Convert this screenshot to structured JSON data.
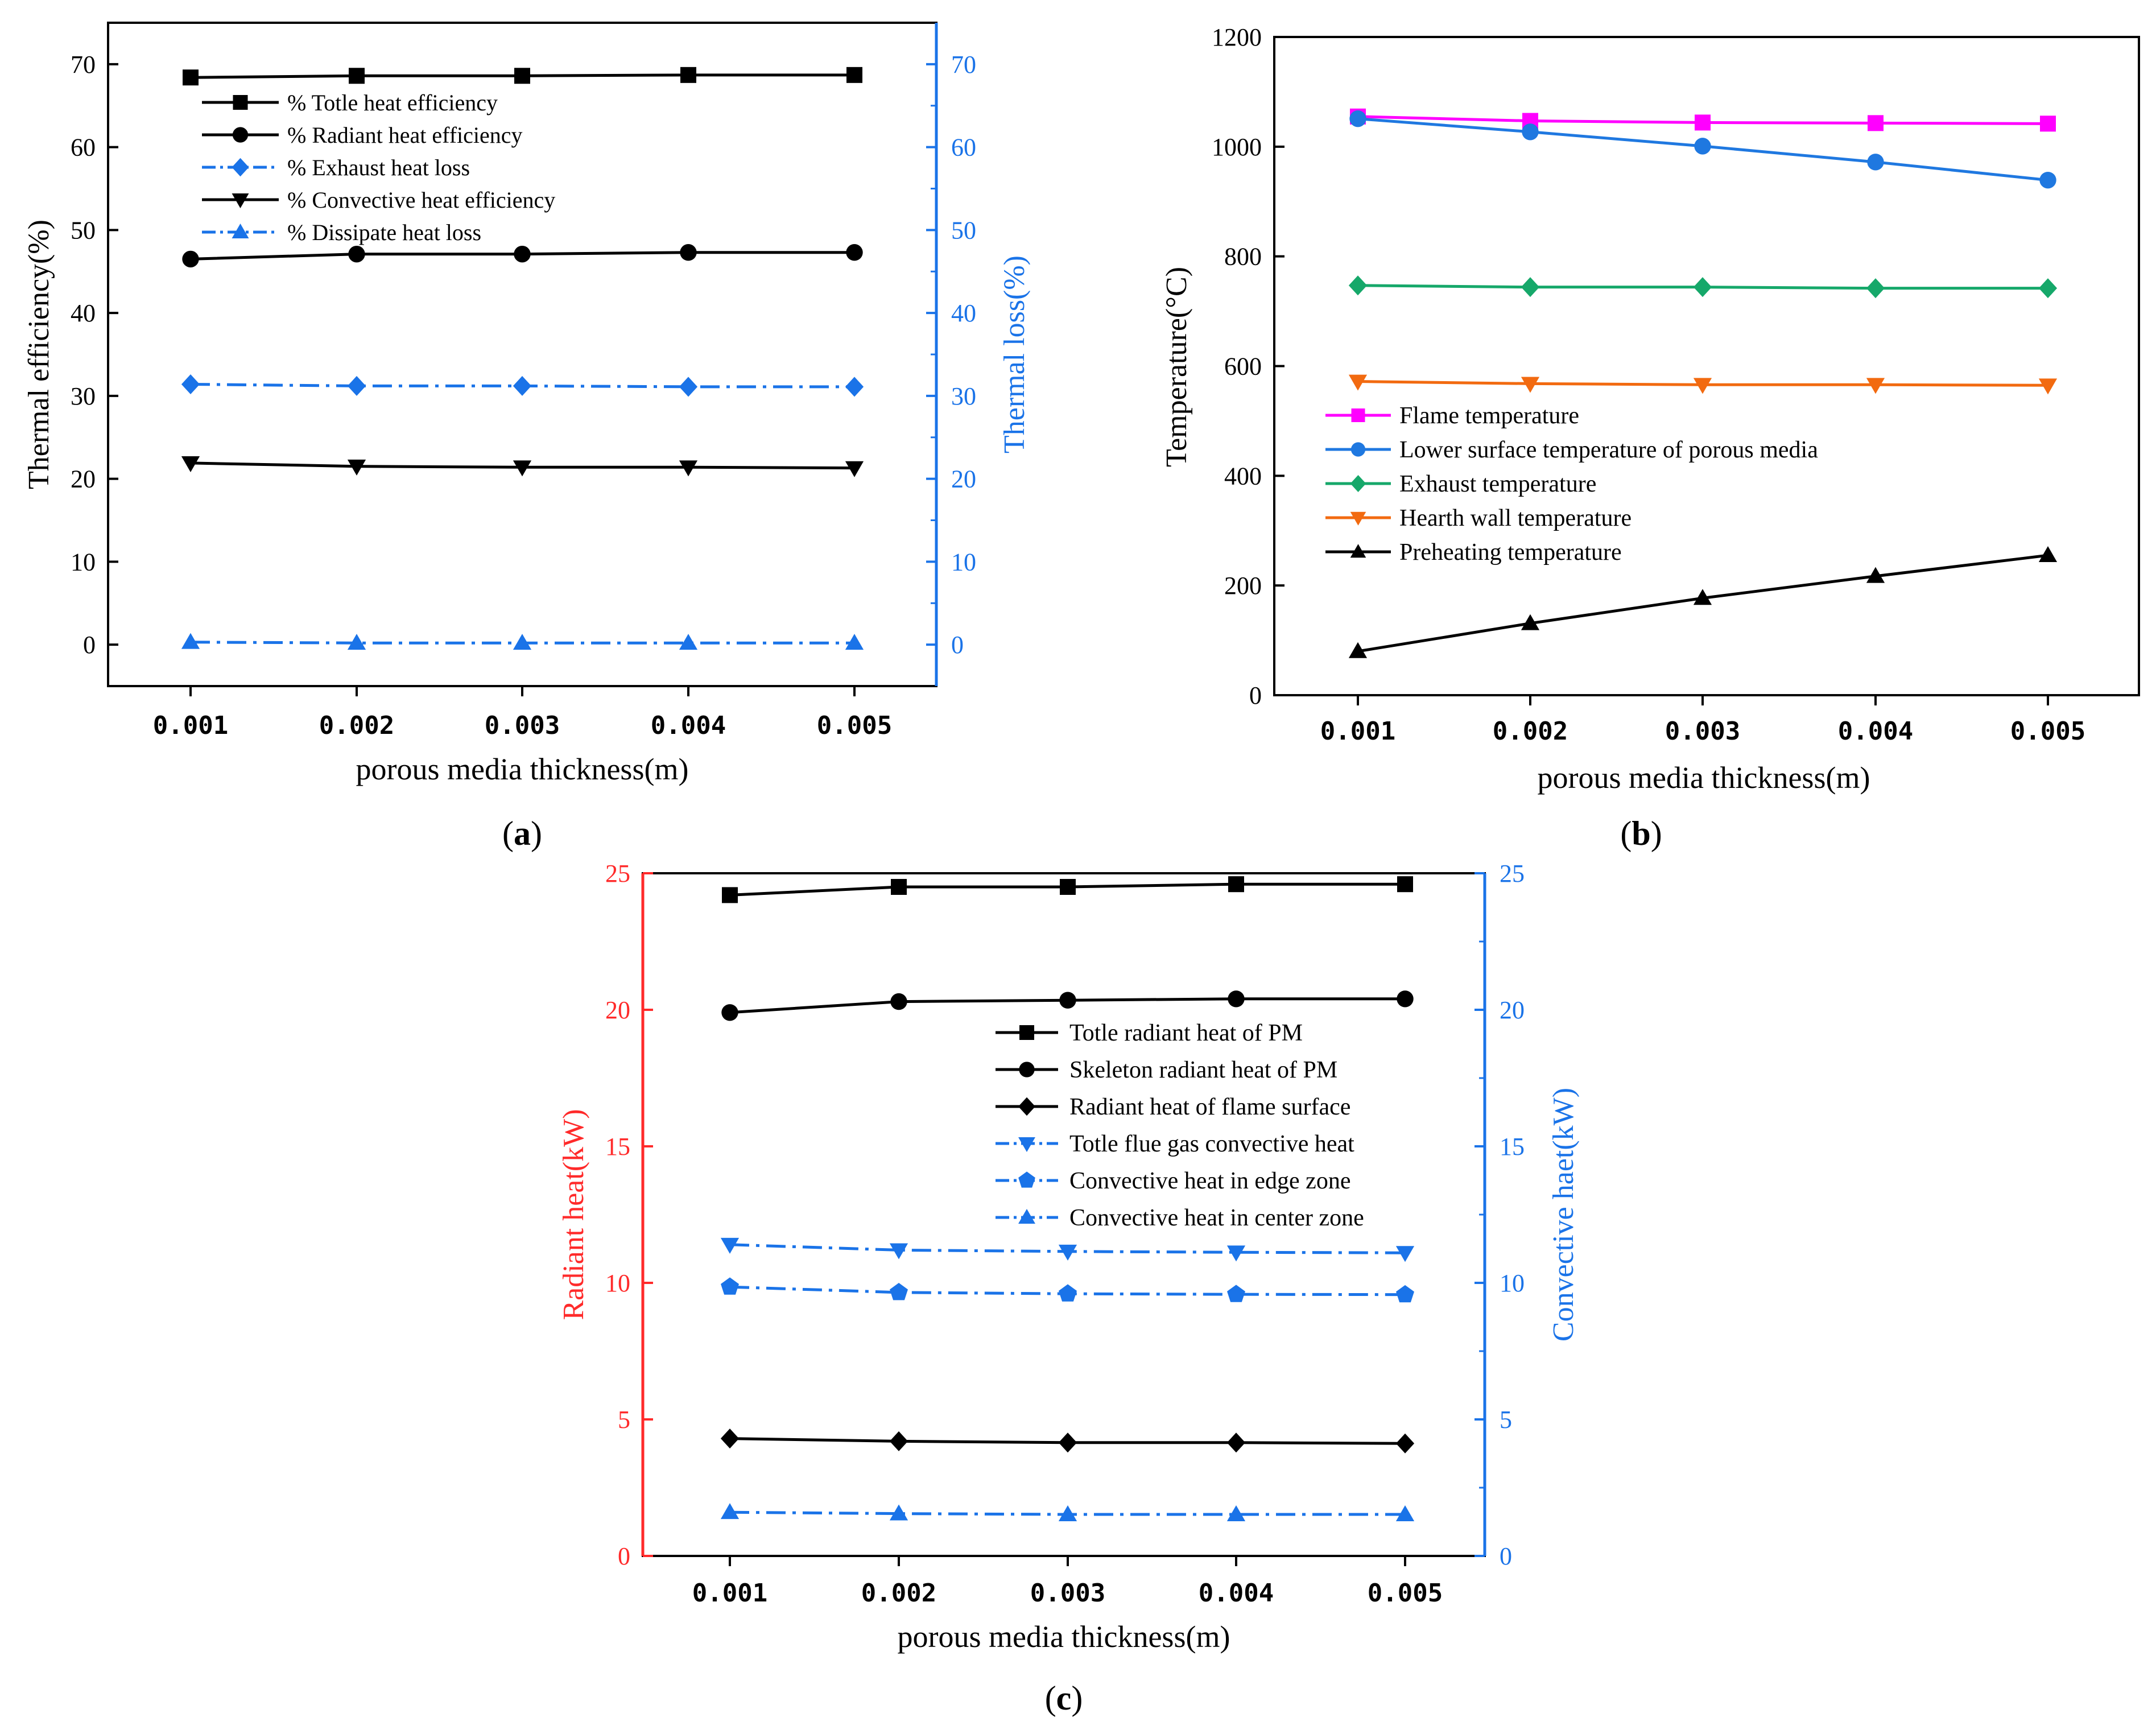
{
  "colors": {
    "black": "#000000",
    "blue": "#1a73e8",
    "magenta": "#ff00ff",
    "lightblue": "#1f78e0",
    "green": "#16a86a",
    "orange": "#f26a10",
    "red": "#ff2a2a"
  },
  "chart_data": [
    {
      "id": "a",
      "type": "line",
      "panel_label": "(a)",
      "panel_letter": "a",
      "xlabel": "porous media thickness(m)",
      "ylabel": "Thermal efficiency(%)",
      "ylabel_right": "Thermal loss(%)",
      "categories": [
        "0.001",
        "0.002",
        "0.003",
        "0.004",
        "0.005"
      ],
      "ylim": [
        -5,
        75
      ],
      "yticks": [
        0,
        10,
        20,
        30,
        40,
        50,
        60,
        70
      ],
      "ylim_right": [
        -5,
        75
      ],
      "yticks_right": [
        0,
        10,
        20,
        30,
        40,
        50,
        60,
        70
      ],
      "legend_position": "top-left",
      "series": [
        {
          "name": "% Totle heat efficiency",
          "values": [
            68.4,
            68.6,
            68.6,
            68.7,
            68.7
          ],
          "color": "black",
          "marker": "square",
          "dash": "solid",
          "axis": "left"
        },
        {
          "name": "% Radiant heat efficiency",
          "values": [
            46.5,
            47.1,
            47.1,
            47.3,
            47.3
          ],
          "color": "black",
          "marker": "circle",
          "dash": "solid",
          "axis": "left"
        },
        {
          "name": "% Exhaust heat loss",
          "values": [
            31.4,
            31.2,
            31.2,
            31.1,
            31.1
          ],
          "color": "blue",
          "marker": "diamond",
          "dash": "dashdot",
          "axis": "right"
        },
        {
          "name": "% Convective heat efficiency",
          "values": [
            21.9,
            21.5,
            21.4,
            21.4,
            21.3
          ],
          "color": "black",
          "marker": "triangle-down",
          "dash": "solid",
          "axis": "left"
        },
        {
          "name": "% Dissipate heat loss",
          "values": [
            0.3,
            0.2,
            0.2,
            0.2,
            0.2
          ],
          "color": "blue",
          "marker": "triangle-up",
          "dash": "dashdot",
          "axis": "right"
        }
      ]
    },
    {
      "id": "b",
      "type": "line",
      "panel_label": "(b)",
      "panel_letter": "b",
      "xlabel": "porous media thickness(m)",
      "ylabel": "Temperature(°C)",
      "categories": [
        "0.001",
        "0.002",
        "0.003",
        "0.004",
        "0.005"
      ],
      "ylim": [
        0,
        1200
      ],
      "yticks": [
        0,
        200,
        400,
        600,
        800,
        1000,
        1200
      ],
      "legend_position": "center-left",
      "series": [
        {
          "name": "Flame temperature",
          "values": [
            1055,
            1047,
            1044,
            1043,
            1042
          ],
          "color": "magenta",
          "marker": "square",
          "dash": "solid"
        },
        {
          "name": "Lower surface temperature of porous media",
          "values": [
            1051,
            1027,
            1001,
            972,
            939
          ],
          "color": "lightblue",
          "marker": "circle",
          "dash": "solid"
        },
        {
          "name": "Exhaust temperature",
          "values": [
            747,
            744,
            744,
            742,
            742
          ],
          "color": "green",
          "marker": "diamond",
          "dash": "solid"
        },
        {
          "name": "Hearth wall temperature",
          "values": [
            572,
            568,
            566,
            566,
            565
          ],
          "color": "orange",
          "marker": "triangle-down",
          "dash": "solid"
        },
        {
          "name": "Preheating temperature",
          "values": [
            80,
            131,
            177,
            217,
            255
          ],
          "color": "black",
          "marker": "triangle-up",
          "dash": "solid"
        }
      ]
    },
    {
      "id": "c",
      "type": "line",
      "panel_label": "(c)",
      "panel_letter": "c",
      "xlabel": "porous media thickness(m)",
      "ylabel": "Radiant heat(kW)",
      "ylabel_right": "Convective haet(kW)",
      "categories": [
        "0.001",
        "0.002",
        "0.003",
        "0.004",
        "0.005"
      ],
      "ylim": [
        0,
        25
      ],
      "yticks": [
        0,
        5,
        10,
        15,
        20,
        25
      ],
      "ylim_right": [
        0,
        25
      ],
      "yticks_right": [
        0,
        5,
        10,
        15,
        20,
        25
      ],
      "legend_position": "top-right",
      "series": [
        {
          "name": "Totle radiant heat of PM",
          "values": [
            24.2,
            24.5,
            24.5,
            24.6,
            24.6
          ],
          "color": "black",
          "marker": "square",
          "dash": "solid",
          "axis": "left"
        },
        {
          "name": "Skeleton radiant heat of PM",
          "values": [
            19.9,
            20.3,
            20.35,
            20.4,
            20.4
          ],
          "color": "black",
          "marker": "circle",
          "dash": "solid",
          "axis": "left"
        },
        {
          "name": "Radiant heat of flame surface",
          "values": [
            4.3,
            4.2,
            4.15,
            4.15,
            4.12
          ],
          "color": "black",
          "marker": "diamond",
          "dash": "solid",
          "axis": "left"
        },
        {
          "name": "Totle flue gas convective heat",
          "values": [
            11.4,
            11.2,
            11.15,
            11.12,
            11.1
          ],
          "color": "blue",
          "marker": "triangle-down",
          "dash": "dashdot",
          "axis": "right"
        },
        {
          "name": "Convective heat in edge zone",
          "values": [
            9.85,
            9.65,
            9.6,
            9.58,
            9.57
          ],
          "color": "blue",
          "marker": "pentagon",
          "dash": "dashdot",
          "axis": "right"
        },
        {
          "name": "Convective heat in center zone",
          "values": [
            1.6,
            1.55,
            1.52,
            1.52,
            1.52
          ],
          "color": "blue",
          "marker": "triangle-up",
          "dash": "dashdot",
          "axis": "right"
        }
      ]
    }
  ]
}
